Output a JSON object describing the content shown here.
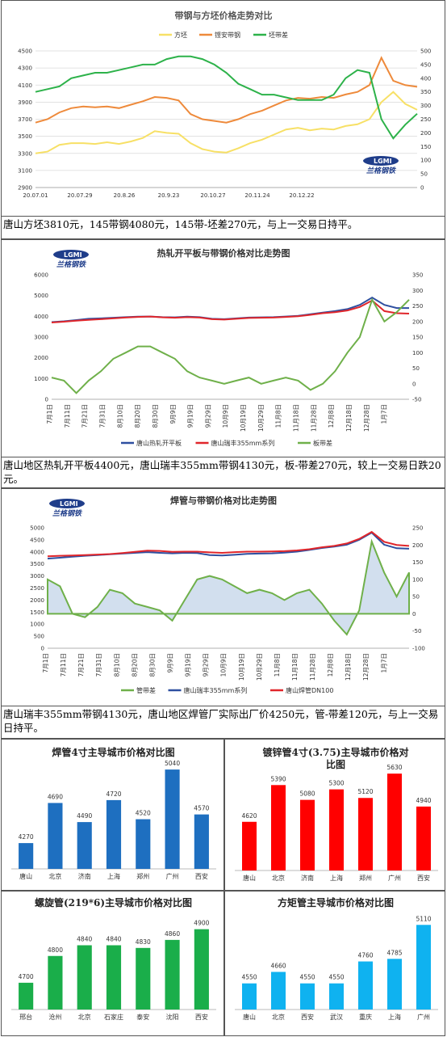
{
  "chart_data": [
    {
      "type": "line",
      "title": "带钢与方坯价格走势对比",
      "x_ticks": [
        "20.07.01",
        "20.07.29",
        "20.8.26",
        "20.9.23",
        "20.10.27",
        "20.11.24",
        "20.12.22"
      ],
      "ylim_left": [
        2900,
        4500
      ],
      "ylim_right": [
        0,
        500
      ],
      "y_ticks_left": [
        "2900",
        "3100",
        "3300",
        "3500",
        "3700",
        "3900",
        "4100",
        "4300",
        "4500"
      ],
      "y_ticks_right": [
        "0",
        "50",
        "100",
        "150",
        "200",
        "250",
        "300",
        "350",
        "400",
        "450",
        "500"
      ],
      "series": [
        {
          "name": "方坯",
          "color": "#f7e066",
          "axis": "left",
          "values": [
            3300,
            3320,
            3400,
            3420,
            3420,
            3410,
            3430,
            3410,
            3440,
            3480,
            3560,
            3540,
            3530,
            3420,
            3350,
            3320,
            3310,
            3360,
            3420,
            3460,
            3520,
            3580,
            3600,
            3570,
            3590,
            3580,
            3620,
            3640,
            3700,
            3900,
            4020,
            3880,
            3810
          ]
        },
        {
          "name": "铿安带钢",
          "color": "#ee8a3b",
          "axis": "left",
          "values": [
            3660,
            3700,
            3780,
            3830,
            3850,
            3840,
            3850,
            3830,
            3870,
            3910,
            3960,
            3950,
            3920,
            3760,
            3700,
            3680,
            3660,
            3700,
            3760,
            3800,
            3860,
            3920,
            3950,
            3940,
            3960,
            3950,
            3990,
            4020,
            4100,
            4420,
            4150,
            4100,
            4080
          ]
        },
        {
          "name": "坯带差",
          "color": "#2db24a",
          "axis": "right",
          "values": [
            350,
            360,
            370,
            400,
            410,
            420,
            420,
            430,
            440,
            450,
            450,
            470,
            480,
            480,
            470,
            450,
            420,
            380,
            360,
            340,
            340,
            330,
            320,
            320,
            320,
            340,
            400,
            430,
            420,
            250,
            180,
            230,
            270
          ]
        }
      ]
    },
    {
      "type": "line",
      "title": "热轧开平板与带钢价格对比走势图",
      "x_ticks": [
        "7月1日",
        "7月11日",
        "7月21日",
        "7月31日",
        "8月10日",
        "8月20日",
        "8月30日",
        "9月9日",
        "9月19日",
        "9月29日",
        "10月9日",
        "10月19日",
        "10月29日",
        "11月8日",
        "11月18日",
        "11月28日",
        "12月8日",
        "12月18日",
        "12月28日",
        "1月7日"
      ],
      "ylim_left": [
        0,
        6000
      ],
      "ylim_right": [
        -50,
        350
      ],
      "y_ticks_left": [
        "0",
        "1000",
        "2000",
        "3000",
        "4000",
        "5000",
        "6000"
      ],
      "y_ticks_right": [
        "-50",
        "0",
        "50",
        "100",
        "150",
        "200",
        "250",
        "300",
        "350"
      ],
      "series": [
        {
          "name": "唐山热轧开平板",
          "color": "#2e4fa0",
          "axis": "left",
          "values": [
            3720,
            3760,
            3820,
            3880,
            3900,
            3930,
            3960,
            3980,
            3990,
            3960,
            3950,
            3980,
            3960,
            3880,
            3860,
            3900,
            3940,
            3950,
            3960,
            3990,
            4020,
            4100,
            4180,
            4250,
            4350,
            4550,
            4900,
            4550,
            4400,
            4400
          ]
        },
        {
          "name": "唐山瑞丰355mm系列",
          "color": "#e0262b",
          "axis": "left",
          "values": [
            3700,
            3740,
            3790,
            3830,
            3860,
            3900,
            3940,
            3970,
            3990,
            3950,
            3930,
            3960,
            3940,
            3860,
            3840,
            3880,
            3920,
            3930,
            3940,
            3970,
            4000,
            4070,
            4150,
            4200,
            4280,
            4450,
            4760,
            4250,
            4150,
            4130
          ]
        },
        {
          "name": "板带差",
          "color": "#6fb04a",
          "axis": "right",
          "values": [
            20,
            10,
            -30,
            10,
            40,
            80,
            100,
            120,
            120,
            100,
            80,
            40,
            20,
            10,
            0,
            10,
            20,
            0,
            10,
            20,
            10,
            -20,
            0,
            40,
            100,
            150,
            270,
            200,
            230,
            270
          ]
        }
      ]
    },
    {
      "type": "area",
      "title": "焊管与带钢价格对比走势图",
      "x_ticks": [
        "7月1日",
        "7月11日",
        "7月21日",
        "7月31日",
        "8月10日",
        "8月20日",
        "8月30日",
        "9月9日",
        "9月19日",
        "9月29日",
        "10月9日",
        "10月19日",
        "10月29日",
        "11月8日",
        "11月18日",
        "11月28日",
        "12月8日",
        "12月18日",
        "12月28日",
        "1月7日"
      ],
      "ylim_left": [
        0,
        5000
      ],
      "ylim_right": [
        -100,
        250
      ],
      "y_ticks_left": [
        "0",
        "500",
        "1000",
        "1500",
        "2000",
        "2500",
        "3000",
        "3500",
        "4000",
        "4500",
        "5000"
      ],
      "y_ticks_right": [
        "-100",
        "-50",
        "0",
        "50",
        "100",
        "150",
        "200",
        "250"
      ],
      "series": [
        {
          "name": "管带差",
          "color": "#6fb04a",
          "axis": "right",
          "values": [
            100,
            80,
            0,
            -10,
            20,
            70,
            60,
            30,
            20,
            10,
            -20,
            40,
            100,
            110,
            100,
            80,
            60,
            70,
            60,
            40,
            60,
            70,
            30,
            -20,
            -60,
            10,
            210,
            120,
            50,
            120
          ]
        },
        {
          "name": "唐山瑞丰355mm系列",
          "color": "#2e4fa0",
          "axis": "left",
          "values": [
            3720,
            3760,
            3800,
            3840,
            3870,
            3900,
            3930,
            3960,
            3990,
            3960,
            3940,
            3960,
            3950,
            3870,
            3850,
            3880,
            3920,
            3930,
            3940,
            3970,
            4010,
            4080,
            4160,
            4220,
            4300,
            4500,
            4800,
            4300,
            4150,
            4130
          ]
        },
        {
          "name": "唐山焊管DN100",
          "color": "#e0262b",
          "axis": "left",
          "values": [
            3820,
            3840,
            3850,
            3870,
            3890,
            3910,
            3950,
            4000,
            4050,
            4040,
            4000,
            4010,
            4010,
            3980,
            3960,
            3990,
            4010,
            4010,
            4020,
            4030,
            4060,
            4110,
            4190,
            4250,
            4350,
            4540,
            4830,
            4420,
            4290,
            4250
          ]
        }
      ]
    },
    {
      "type": "bar",
      "title": "焊管4寸主导城市价格对比图",
      "color": "#1e6fc0",
      "categories": [
        "唐山",
        "北京",
        "济南",
        "上海",
        "郑州",
        "广州",
        "西安"
      ],
      "values": [
        4270,
        4690,
        4490,
        4720,
        4520,
        5040,
        4570
      ],
      "ylim": [
        4000,
        5100
      ]
    },
    {
      "type": "bar",
      "title": "镀锌管4寸(3.75)主导城市价格对比图",
      "color": "#ff0000",
      "categories": [
        "唐山",
        "北京",
        "济南",
        "上海",
        "郑州",
        "广州",
        "西安"
      ],
      "values": [
        4620,
        5390,
        5080,
        5300,
        5120,
        5630,
        4940
      ],
      "ylim": [
        3600,
        5700
      ]
    },
    {
      "type": "bar",
      "title": "螺旋管(219*6)主导城市价格对比图",
      "color": "#1aae4a",
      "categories": [
        "邢台",
        "沧州",
        "北京",
        "石家庄",
        "泰安",
        "沈阳",
        "西安"
      ],
      "values": [
        4700,
        4800,
        4840,
        4840,
        4830,
        4860,
        4900
      ],
      "ylim": [
        4600,
        4920
      ]
    },
    {
      "type": "bar",
      "title": "方矩管主导城市价格对比图",
      "color": "#0fb2f0",
      "categories": [
        "唐山",
        "北京",
        "西安",
        "武汉",
        "重庆",
        "上海",
        "广州"
      ],
      "values": [
        4550,
        4660,
        4550,
        4550,
        4760,
        4785,
        5110
      ],
      "ylim": [
        4300,
        5120
      ]
    }
  ],
  "logo_text": "兰格钢铁",
  "captions": {
    "c1": "唐山方坯3810元，145带钢4080元，145带-坯差270元，与上一交易日持平。",
    "c2": "唐山地区热轧开平板4400元，唐山瑞丰355mm带钢4130元，板-带差270元，较上一交易日跌20元。",
    "c3": "唐山瑞丰355mm带钢4130元，唐山地区焊管厂实际出厂价4250元，管-带差120元，与上一交易日持平。"
  }
}
